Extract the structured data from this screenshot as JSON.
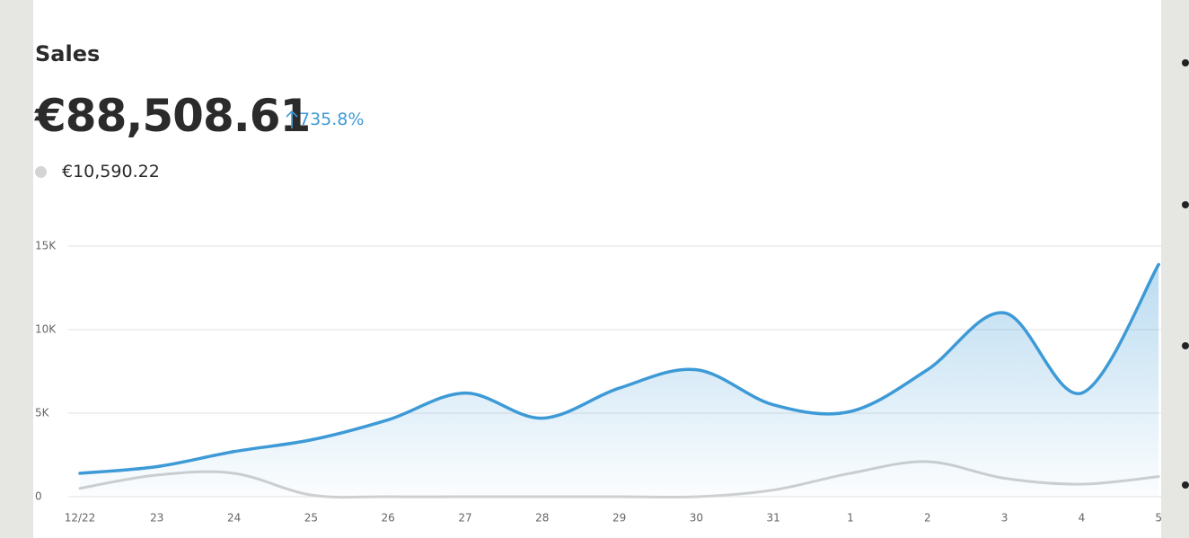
{
  "header": {
    "title": "Sales",
    "total": "€88,508.61",
    "change": "735.8%",
    "comparison_total": "€10,590.22"
  },
  "chart_data": {
    "type": "area-line",
    "categories": [
      "12/22",
      "23",
      "24",
      "25",
      "26",
      "27",
      "28",
      "29",
      "30",
      "31",
      "1",
      "2",
      "3",
      "4",
      "5"
    ],
    "series": [
      {
        "color": "#3d9ad6",
        "values": [
          1400,
          1800,
          2700,
          3400,
          4600,
          6200,
          4700,
          6500,
          7600,
          5500,
          5100,
          7600,
          11000,
          6200,
          13900
        ]
      },
      {
        "color": "#d0d0d0",
        "values": [
          500,
          1300,
          1400,
          100,
          0,
          0,
          0,
          0,
          0,
          400,
          1400,
          2100,
          1100,
          750,
          1200
        ]
      }
    ],
    "ylim": [
      0,
      15000
    ],
    "yticks": [
      0,
      {
        "value": 5000,
        "label": "5K"
      },
      {
        "value": 10000,
        "label": "10K"
      },
      {
        "value": 15000,
        "label": "15K"
      }
    ],
    "grid": true
  }
}
